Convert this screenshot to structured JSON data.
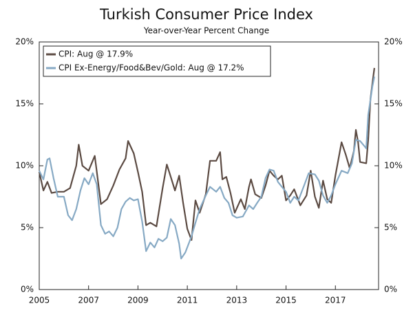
{
  "chart_data": {
    "type": "line",
    "title": "Turkish Consumer Price Index",
    "subtitle": "Year-over-Year Percent Change",
    "legend": "upper left",
    "xlim": [
      2005,
      2018.75
    ],
    "xticks": [
      2005,
      2007,
      2009,
      2011,
      2013,
      2015,
      2017
    ],
    "ylim": [
      0,
      20
    ],
    "yticks": [
      {
        "value": 0,
        "label": "0%"
      },
      {
        "value": 5,
        "label": "5%"
      },
      {
        "value": 10,
        "label": "10%"
      },
      {
        "value": 15,
        "label": "15%"
      },
      {
        "value": 20,
        "label": "20%"
      }
    ],
    "y2lim": [
      0,
      20
    ],
    "y2ticks": [
      {
        "value": 0,
        "label": "0%"
      },
      {
        "value": 5,
        "label": "5%"
      },
      {
        "value": 10,
        "label": "10%"
      },
      {
        "value": 15,
        "label": "15%"
      },
      {
        "value": 20,
        "label": "20%"
      }
    ],
    "series": [
      {
        "name": "CPI: Aug @ 17.9%",
        "color": "#5b4a42",
        "x": [
          2005.0,
          2005.17,
          2005.33,
          2005.5,
          2005.75,
          2006.0,
          2006.25,
          2006.5,
          2006.6,
          2006.75,
          2007.0,
          2007.25,
          2007.5,
          2007.75,
          2008.0,
          2008.25,
          2008.5,
          2008.6,
          2008.83,
          2009.0,
          2009.17,
          2009.33,
          2009.5,
          2009.75,
          2010.0,
          2010.17,
          2010.33,
          2010.5,
          2010.67,
          2010.83,
          2011.0,
          2011.17,
          2011.33,
          2011.5,
          2011.75,
          2011.92,
          2012.17,
          2012.33,
          2012.42,
          2012.58,
          2012.75,
          2012.92,
          2013.17,
          2013.33,
          2013.5,
          2013.58,
          2013.75,
          2014.0,
          2014.17,
          2014.33,
          2014.5,
          2014.67,
          2014.83,
          2015.0,
          2015.17,
          2015.33,
          2015.58,
          2015.83,
          2016.0,
          2016.17,
          2016.33,
          2016.5,
          2016.67,
          2016.83,
          2017.0,
          2017.25,
          2017.42,
          2017.58,
          2017.75,
          2017.83,
          2017.92,
          2018.0,
          2018.25,
          2018.33,
          2018.42,
          2018.58
        ],
        "values": [
          9.5,
          8.0,
          8.7,
          7.8,
          7.9,
          7.9,
          8.2,
          10.0,
          11.7,
          10.0,
          9.6,
          10.8,
          6.9,
          7.3,
          8.4,
          9.7,
          10.6,
          12.0,
          11.0,
          9.5,
          7.9,
          5.2,
          5.4,
          5.1,
          8.2,
          10.1,
          9.1,
          8.0,
          9.2,
          7.0,
          4.9,
          4.0,
          7.2,
          6.2,
          7.7,
          10.4,
          10.4,
          11.1,
          8.9,
          9.1,
          7.8,
          6.2,
          7.3,
          6.5,
          8.3,
          8.9,
          7.7,
          7.4,
          8.4,
          9.6,
          9.2,
          8.9,
          9.2,
          7.2,
          7.6,
          8.1,
          6.8,
          7.6,
          9.6,
          7.5,
          6.6,
          8.8,
          7.3,
          7.0,
          9.2,
          11.9,
          10.9,
          9.8,
          11.2,
          12.9,
          11.9,
          10.3,
          10.2,
          12.1,
          15.4,
          17.9
        ]
      },
      {
        "name": "CPI Ex-Energy/Food&Bev/Gold: Aug @ 17.2%",
        "color": "#86a9c4",
        "x": [
          2005.0,
          2005.17,
          2005.33,
          2005.42,
          2005.58,
          2005.75,
          2006.0,
          2006.17,
          2006.33,
          2006.5,
          2006.67,
          2006.83,
          2007.0,
          2007.17,
          2007.33,
          2007.5,
          2007.67,
          2007.83,
          2008.0,
          2008.17,
          2008.33,
          2008.5,
          2008.67,
          2008.83,
          2009.0,
          2009.17,
          2009.33,
          2009.5,
          2009.67,
          2009.83,
          2010.0,
          2010.17,
          2010.33,
          2010.5,
          2010.67,
          2010.75,
          2010.92,
          2011.17,
          2011.33,
          2011.5,
          2011.75,
          2011.92,
          2012.17,
          2012.33,
          2012.5,
          2012.67,
          2012.83,
          2013.0,
          2013.25,
          2013.5,
          2013.67,
          2013.83,
          2014.0,
          2014.17,
          2014.33,
          2014.5,
          2014.67,
          2014.83,
          2015.0,
          2015.17,
          2015.33,
          2015.5,
          2015.75,
          2015.92,
          2016.17,
          2016.33,
          2016.5,
          2016.67,
          2016.83,
          2017.0,
          2017.25,
          2017.5,
          2017.67,
          2017.83,
          2018.0,
          2018.17,
          2018.25,
          2018.33,
          2018.5,
          2018.58
        ],
        "values": [
          9.6,
          8.9,
          10.5,
          10.6,
          9.0,
          7.5,
          7.5,
          6.0,
          5.6,
          6.5,
          8.0,
          9.0,
          8.5,
          9.4,
          8.5,
          5.2,
          4.5,
          4.7,
          4.3,
          5.0,
          6.5,
          7.1,
          7.4,
          7.2,
          7.3,
          5.5,
          3.1,
          3.8,
          3.4,
          4.1,
          3.9,
          4.2,
          5.7,
          5.2,
          3.7,
          2.5,
          3.0,
          4.3,
          5.4,
          6.5,
          7.6,
          8.3,
          7.9,
          8.3,
          7.4,
          7.0,
          6.0,
          5.8,
          5.9,
          6.8,
          6.5,
          7.0,
          7.5,
          9.0,
          9.7,
          9.6,
          8.7,
          8.3,
          7.9,
          7.0,
          7.5,
          7.2,
          8.5,
          9.4,
          9.3,
          8.8,
          7.6,
          7.0,
          7.6,
          8.5,
          9.6,
          9.4,
          10.2,
          12.1,
          12.0,
          11.6,
          11.4,
          14.1,
          16.4,
          17.2
        ]
      }
    ]
  }
}
